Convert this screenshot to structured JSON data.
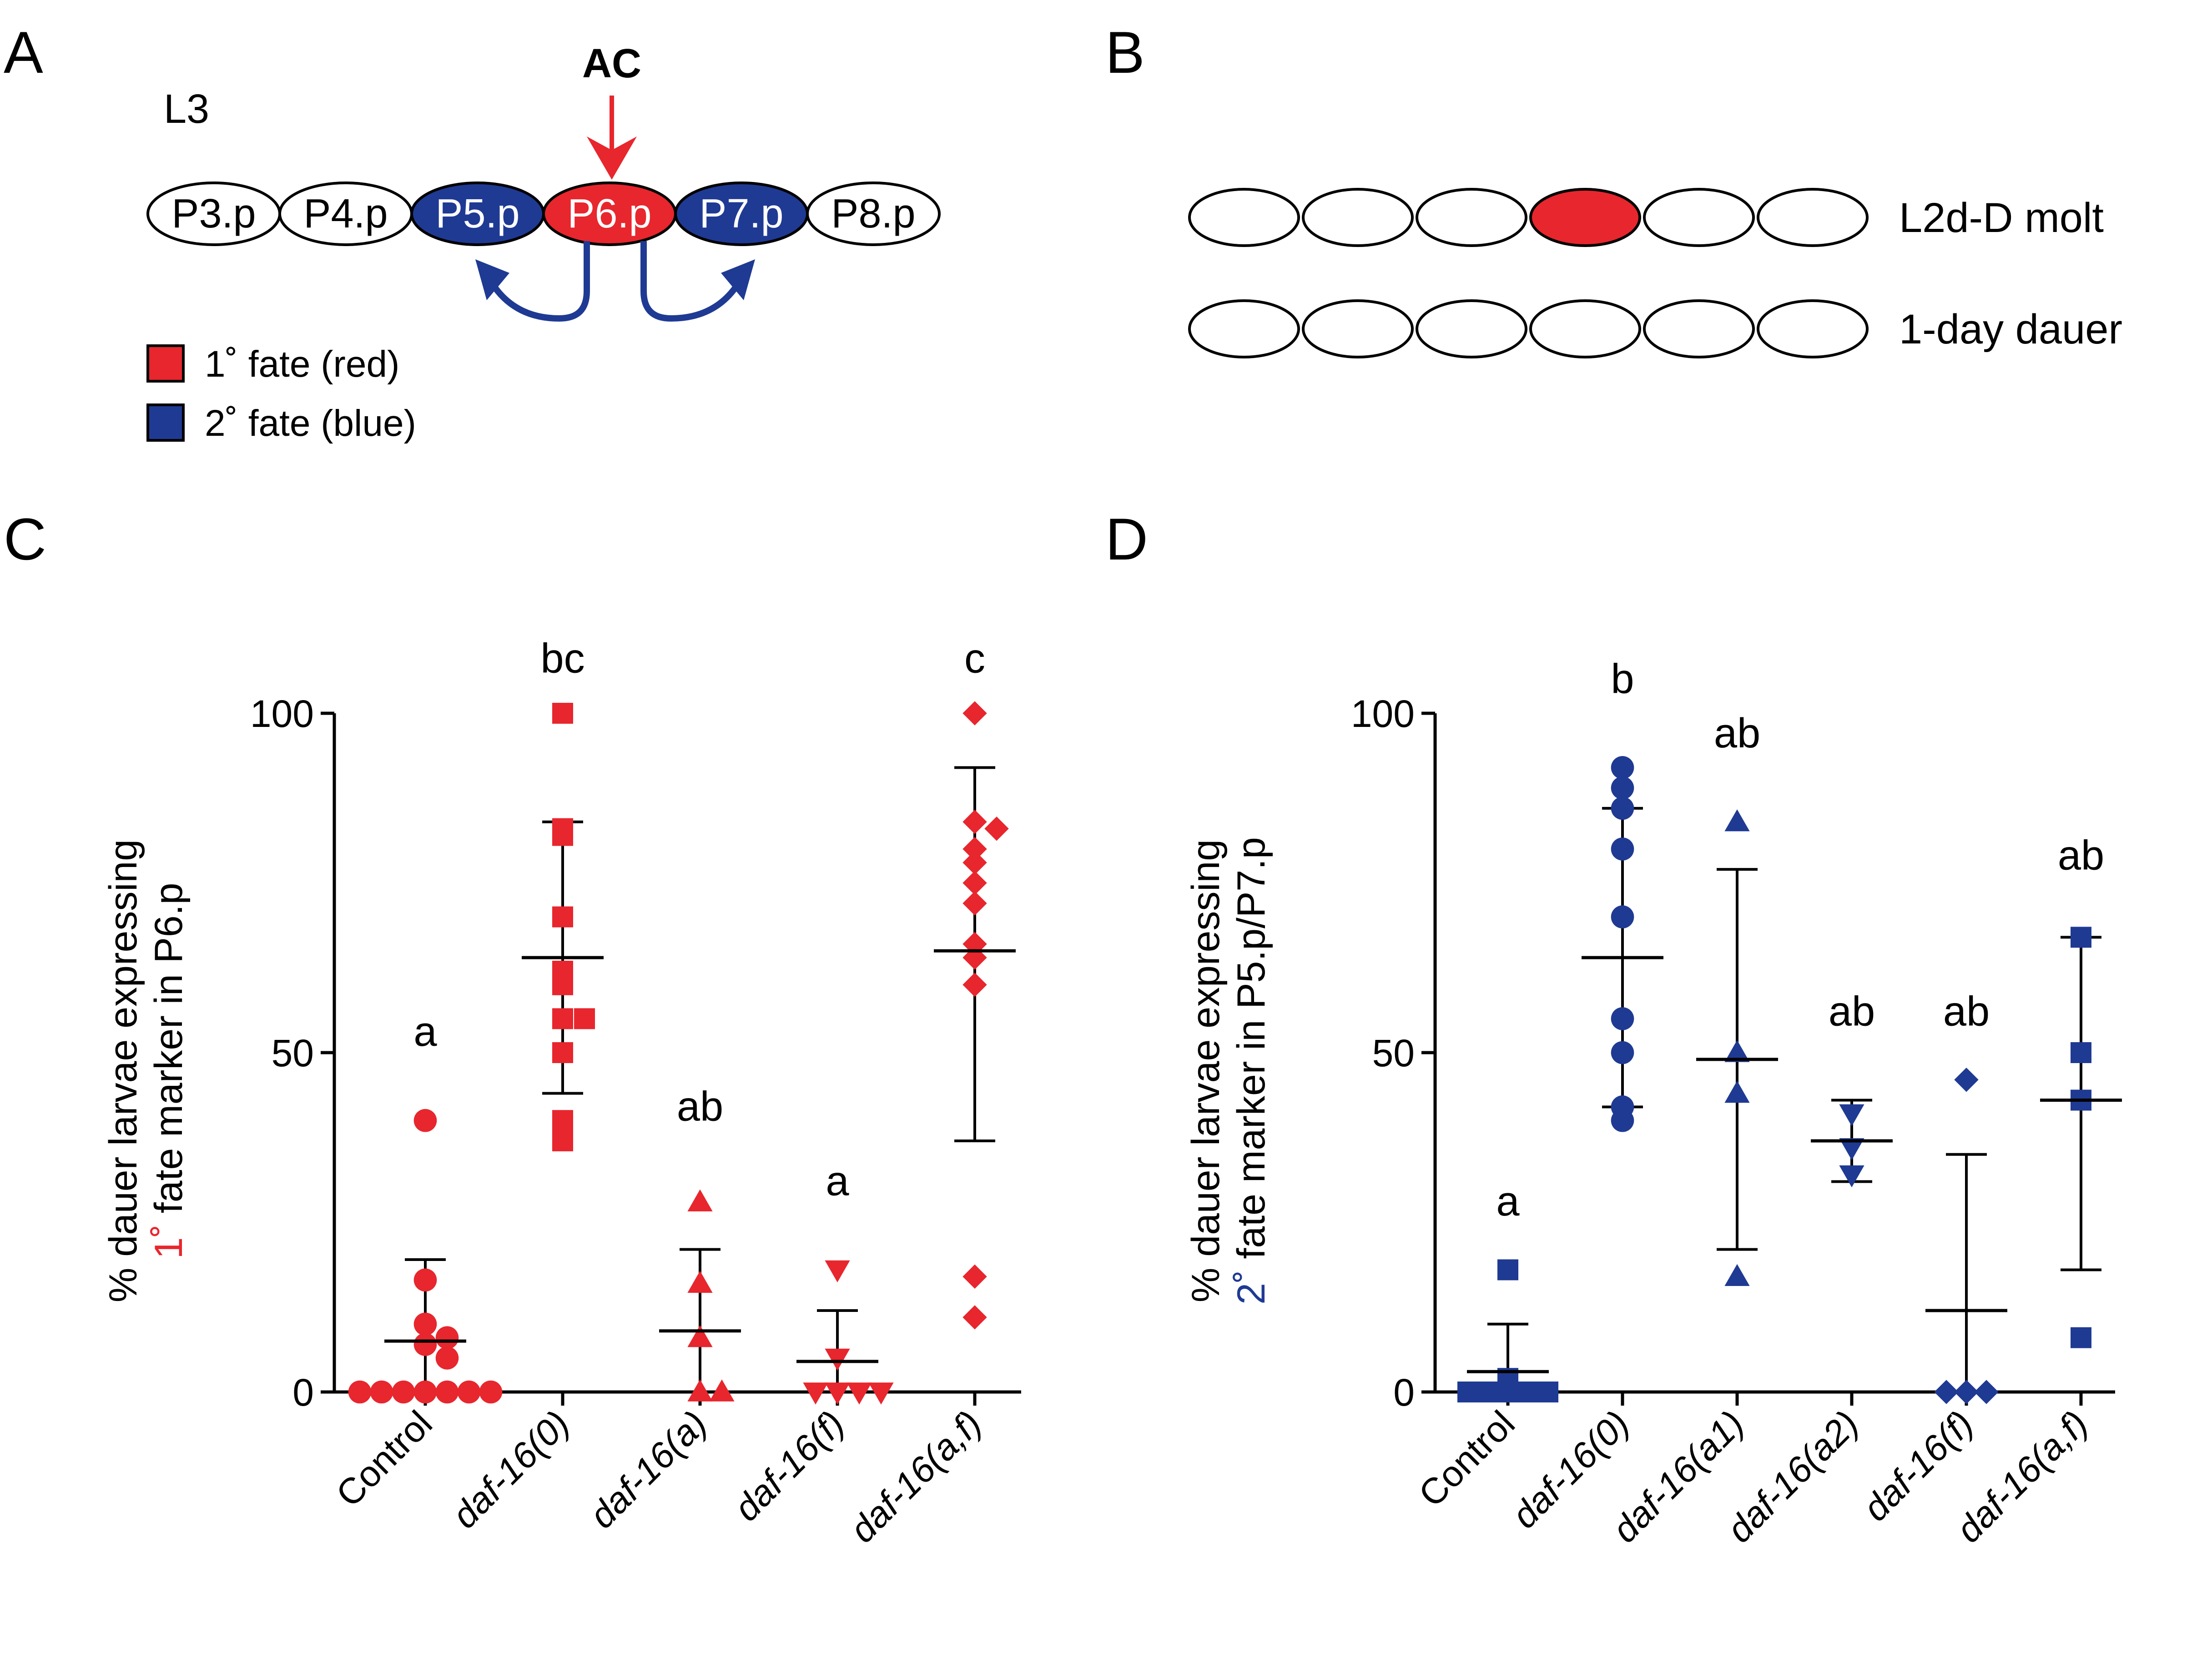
{
  "panels": {
    "A": {
      "letter": "A",
      "stage": "L3",
      "ac_label": "AC",
      "cells": [
        {
          "label": "P3.p",
          "fill": "#ffffff",
          "text_color": "#000000"
        },
        {
          "label": "P4.p",
          "fill": "#ffffff",
          "text_color": "#000000"
        },
        {
          "label": "P5.p",
          "fill": "#1f3a93",
          "text_color": "#ffffff"
        },
        {
          "label": "P6.p",
          "fill": "#e8262d",
          "text_color": "#ffffff"
        },
        {
          "label": "P7.p",
          "fill": "#1f3a93",
          "text_color": "#ffffff"
        },
        {
          "label": "P8.p",
          "fill": "#ffffff",
          "text_color": "#000000"
        }
      ],
      "legend": [
        {
          "label": "1˚ fate (red)",
          "color": "#e8262d"
        },
        {
          "label": "2˚ fate (blue)",
          "color": "#1f3a93"
        }
      ]
    },
    "B": {
      "letter": "B",
      "rows": [
        {
          "label": "L2d-D molt",
          "cells": [
            "#ffffff",
            "#ffffff",
            "#ffffff",
            "#e8262d",
            "#ffffff",
            "#ffffff"
          ]
        },
        {
          "label": "1-day dauer",
          "cells": [
            "#ffffff",
            "#ffffff",
            "#ffffff",
            "#ffffff",
            "#ffffff",
            "#ffffff"
          ]
        }
      ]
    },
    "C": {
      "letter": "C"
    },
    "D": {
      "letter": "D"
    }
  },
  "colors": {
    "red": "#e8262d",
    "blue": "#1f3a93",
    "black": "#000000"
  },
  "chart_data": [
    {
      "type": "scatter",
      "panel": "C",
      "ylabel_line1": "% dauer larvae expressing",
      "ylabel_line2_colored": "1˚",
      "ylabel_line2_rest": " fate marker in P6.p",
      "ylim": [
        0,
        100
      ],
      "yticks": [
        0,
        50,
        100
      ],
      "color": "#e8262d",
      "categories": [
        "Control",
        "daf-16(0)",
        "daf-16(a)",
        "daf-16(f)",
        "daf-16(a,f)"
      ],
      "italic": [
        false,
        true,
        true,
        true,
        true
      ],
      "series": [
        {
          "marker": "circle",
          "letters": "a",
          "letter_y": 53,
          "mean": 7.5,
          "sd_low": 0,
          "sd_high": 19.5,
          "points": [
            40,
            16.5,
            10,
            8,
            7,
            5,
            0,
            0,
            0,
            0,
            0,
            0,
            0
          ]
        },
        {
          "marker": "square",
          "letters": "bc",
          "letter_y": 108,
          "mean": 64,
          "sd_low": 44,
          "sd_high": 84,
          "points": [
            100,
            83,
            82,
            70,
            62,
            60,
            55,
            55,
            50,
            40,
            37
          ]
        },
        {
          "marker": "triangle-up",
          "letters": "ab",
          "letter_y": 42,
          "mean": 9,
          "sd_low": 0,
          "sd_high": 21,
          "points": [
            28,
            16,
            8,
            0,
            0
          ]
        },
        {
          "marker": "triangle-down",
          "letters": "a",
          "letter_y": 31,
          "mean": 4.5,
          "sd_low": 0,
          "sd_high": 12,
          "points": [
            18,
            5,
            0,
            0,
            0,
            0
          ]
        },
        {
          "marker": "diamond",
          "letters": "c",
          "letter_y": 108,
          "mean": 65,
          "sd_low": 37,
          "sd_high": 92,
          "points": [
            100,
            84,
            83,
            80,
            78,
            75,
            72,
            66,
            64,
            60,
            17,
            11
          ]
        }
      ]
    },
    {
      "type": "scatter",
      "panel": "D",
      "ylabel_line1": "% dauer larvae expressing",
      "ylabel_line2_colored": "2˚",
      "ylabel_line2_rest": " fate marker in P5.p/P7.p",
      "ylim": [
        0,
        100
      ],
      "yticks": [
        0,
        50,
        100
      ],
      "color": "#1f3a93",
      "categories": [
        "Control",
        "daf-16(0)",
        "daf-16(a1)",
        "daf-16(a2)",
        "daf-16(f)",
        "daf-16(a,f)"
      ],
      "italic": [
        false,
        true,
        true,
        true,
        true,
        true
      ],
      "series": [
        {
          "marker": "square",
          "letters": "a",
          "letter_y": 28,
          "mean": 3,
          "sd_low": 0,
          "sd_high": 10,
          "points": [
            18,
            2,
            0,
            0,
            0,
            0,
            0
          ]
        },
        {
          "marker": "circle",
          "letters": "b",
          "letter_y": 105,
          "mean": 64,
          "sd_low": 42,
          "sd_high": 86,
          "points": [
            92,
            89,
            86,
            80,
            70,
            55,
            50,
            42,
            40
          ]
        },
        {
          "marker": "triangle-up",
          "letters": "ab",
          "letter_y": 97,
          "mean": 49,
          "sd_low": 21,
          "sd_high": 77,
          "points": [
            84,
            50,
            44,
            17
          ]
        },
        {
          "marker": "triangle-down",
          "letters": "ab",
          "letter_y": 56,
          "mean": 37,
          "sd_low": 31,
          "sd_high": 43,
          "points": [
            41,
            36,
            32
          ]
        },
        {
          "marker": "diamond",
          "letters": "ab",
          "letter_y": 56,
          "mean": 12,
          "sd_low": 0,
          "sd_high": 35,
          "points": [
            46,
            0,
            0,
            0
          ]
        },
        {
          "marker": "square",
          "letters": "ab",
          "letter_y": 79,
          "mean": 43,
          "sd_low": 18,
          "sd_high": 67,
          "points": [
            67,
            50,
            43,
            8
          ]
        }
      ]
    }
  ]
}
